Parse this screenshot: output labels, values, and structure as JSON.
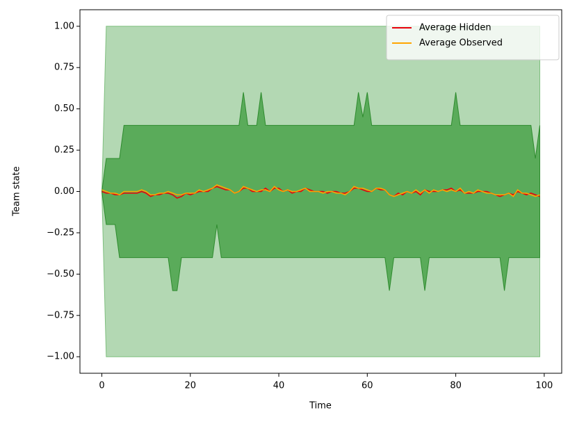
{
  "chart_data": {
    "type": "band_line",
    "xlabel": "Time",
    "ylabel": "Team state",
    "x": [
      0,
      1,
      2,
      3,
      4,
      5,
      6,
      7,
      8,
      9,
      10,
      11,
      12,
      13,
      14,
      15,
      16,
      17,
      18,
      19,
      20,
      21,
      22,
      23,
      24,
      25,
      26,
      27,
      28,
      29,
      30,
      31,
      32,
      33,
      34,
      35,
      36,
      37,
      38,
      39,
      40,
      41,
      42,
      43,
      44,
      45,
      46,
      47,
      48,
      49,
      50,
      51,
      52,
      53,
      54,
      55,
      56,
      57,
      58,
      59,
      60,
      61,
      62,
      63,
      64,
      65,
      66,
      67,
      68,
      69,
      70,
      71,
      72,
      73,
      74,
      75,
      76,
      77,
      78,
      79,
      80,
      81,
      82,
      83,
      84,
      85,
      86,
      87,
      88,
      89,
      90,
      91,
      92,
      93,
      94,
      95,
      96,
      97,
      98,
      99
    ],
    "bands": [
      {
        "color": "#b3d8b3",
        "edge": "#7fbf7f",
        "upper": [
          0,
          1,
          1,
          1,
          1,
          1,
          1,
          1,
          1,
          1,
          1,
          1,
          1,
          1,
          1,
          1,
          1,
          1,
          1,
          1,
          1,
          1,
          1,
          1,
          1,
          1,
          1,
          1,
          1,
          1,
          1,
          1,
          1,
          1,
          1,
          1,
          1,
          1,
          1,
          1,
          1,
          1,
          1,
          1,
          1,
          1,
          1,
          1,
          1,
          1,
          1,
          1,
          1,
          1,
          1,
          1,
          1,
          1,
          1,
          1,
          1,
          1,
          1,
          1,
          1,
          1,
          1,
          1,
          1,
          1,
          1,
          1,
          1,
          1,
          1,
          1,
          1,
          1,
          1,
          1,
          1,
          1,
          1,
          1,
          1,
          1,
          1,
          1,
          1,
          1,
          1,
          1,
          1,
          1,
          1,
          1,
          1,
          1,
          1,
          1
        ],
        "lower": [
          0,
          -1,
          -1,
          -1,
          -1,
          -1,
          -1,
          -1,
          -1,
          -1,
          -1,
          -1,
          -1,
          -1,
          -1,
          -1,
          -1,
          -1,
          -1,
          -1,
          -1,
          -1,
          -1,
          -1,
          -1,
          -1,
          -1,
          -1,
          -1,
          -1,
          -1,
          -1,
          -1,
          -1,
          -1,
          -1,
          -1,
          -1,
          -1,
          -1,
          -1,
          -1,
          -1,
          -1,
          -1,
          -1,
          -1,
          -1,
          -1,
          -1,
          -1,
          -1,
          -1,
          -1,
          -1,
          -1,
          -1,
          -1,
          -1,
          -1,
          -1,
          -1,
          -1,
          -1,
          -1,
          -1,
          -1,
          -1,
          -1,
          -1,
          -1,
          -1,
          -1,
          -1,
          -1,
          -1,
          -1,
          -1,
          -1,
          -1,
          -1,
          -1,
          -1,
          -1,
          -1,
          -1,
          -1,
          -1,
          -1,
          -1,
          -1,
          -1,
          -1,
          -1,
          -1,
          -1,
          -1,
          -1,
          -1,
          -1
        ]
      },
      {
        "color": "#5aab5a",
        "edge": "#2e8b2e",
        "upper": [
          0,
          0.2,
          0.2,
          0.2,
          0.2,
          0.4,
          0.4,
          0.4,
          0.4,
          0.4,
          0.4,
          0.4,
          0.4,
          0.4,
          0.4,
          0.4,
          0.4,
          0.4,
          0.4,
          0.4,
          0.4,
          0.4,
          0.4,
          0.4,
          0.4,
          0.4,
          0.4,
          0.4,
          0.4,
          0.4,
          0.4,
          0.4,
          0.6,
          0.4,
          0.4,
          0.4,
          0.6,
          0.4,
          0.4,
          0.4,
          0.4,
          0.4,
          0.4,
          0.4,
          0.4,
          0.4,
          0.4,
          0.4,
          0.4,
          0.4,
          0.4,
          0.4,
          0.4,
          0.4,
          0.4,
          0.4,
          0.4,
          0.4,
          0.6,
          0.45,
          0.6,
          0.4,
          0.4,
          0.4,
          0.4,
          0.4,
          0.4,
          0.4,
          0.4,
          0.4,
          0.4,
          0.4,
          0.4,
          0.4,
          0.4,
          0.4,
          0.4,
          0.4,
          0.4,
          0.4,
          0.6,
          0.4,
          0.4,
          0.4,
          0.4,
          0.4,
          0.4,
          0.4,
          0.4,
          0.4,
          0.4,
          0.4,
          0.4,
          0.4,
          0.4,
          0.4,
          0.4,
          0.4,
          0.2,
          0.4
        ],
        "lower": [
          0,
          -0.2,
          -0.2,
          -0.2,
          -0.4,
          -0.4,
          -0.4,
          -0.4,
          -0.4,
          -0.4,
          -0.4,
          -0.4,
          -0.4,
          -0.4,
          -0.4,
          -0.4,
          -0.6,
          -0.6,
          -0.4,
          -0.4,
          -0.4,
          -0.4,
          -0.4,
          -0.4,
          -0.4,
          -0.4,
          -0.2,
          -0.4,
          -0.4,
          -0.4,
          -0.4,
          -0.4,
          -0.4,
          -0.4,
          -0.4,
          -0.4,
          -0.4,
          -0.4,
          -0.4,
          -0.4,
          -0.4,
          -0.4,
          -0.4,
          -0.4,
          -0.4,
          -0.4,
          -0.4,
          -0.4,
          -0.4,
          -0.4,
          -0.4,
          -0.4,
          -0.4,
          -0.4,
          -0.4,
          -0.4,
          -0.4,
          -0.4,
          -0.4,
          -0.4,
          -0.4,
          -0.4,
          -0.4,
          -0.4,
          -0.4,
          -0.6,
          -0.4,
          -0.4,
          -0.4,
          -0.4,
          -0.4,
          -0.4,
          -0.4,
          -0.6,
          -0.4,
          -0.4,
          -0.4,
          -0.4,
          -0.4,
          -0.4,
          -0.4,
          -0.4,
          -0.4,
          -0.4,
          -0.4,
          -0.4,
          -0.4,
          -0.4,
          -0.4,
          -0.4,
          -0.4,
          -0.6,
          -0.4,
          -0.4,
          -0.4,
          -0.4,
          -0.4,
          -0.4,
          -0.4,
          -0.4
        ]
      }
    ],
    "series": [
      {
        "name": "Average Hidden",
        "color": "#e8000b",
        "values": [
          0,
          -0.01,
          -0.01,
          -0.02,
          -0.02,
          -0.01,
          -0.01,
          -0.01,
          -0.01,
          0,
          -0.01,
          -0.03,
          -0.02,
          -0.02,
          -0.01,
          -0.01,
          -0.02,
          -0.04,
          -0.03,
          -0.01,
          -0.02,
          -0.01,
          0,
          0,
          0,
          0.02,
          0.03,
          0.02,
          0.01,
          0.01,
          -0.01,
          0,
          0.02,
          0.02,
          0,
          0,
          0,
          0.02,
          0,
          0.02,
          0.02,
          0,
          0.01,
          -0.01,
          0,
          0,
          0.02,
          0.01,
          0,
          0,
          0,
          -0.01,
          0,
          0,
          -0.01,
          -0.01,
          0,
          0.02,
          0.02,
          0.01,
          0,
          0,
          0.02,
          0.01,
          0.01,
          -0.02,
          -0.03,
          -0.01,
          -0.02,
          0,
          -0.01,
          0,
          -0.02,
          0.01,
          0,
          0,
          0,
          0.01,
          0.01,
          0.02,
          0,
          0.01,
          -0.01,
          -0.01,
          -0.01,
          0,
          0,
          0,
          -0.01,
          -0.02,
          -0.03,
          -0.02,
          -0.01,
          -0.02,
          0,
          -0.01,
          -0.02,
          -0.01,
          -0.02,
          -0.03
        ]
      },
      {
        "name": "Average Observed",
        "color": "#ffa500",
        "values": [
          0.01,
          0,
          -0.01,
          -0.01,
          -0.02,
          0,
          0,
          0,
          0,
          0.01,
          0,
          -0.02,
          -0.02,
          -0.01,
          -0.01,
          0,
          -0.01,
          -0.02,
          -0.02,
          -0.01,
          -0.01,
          -0.01,
          0.01,
          0,
          0.01,
          0.02,
          0.04,
          0.03,
          0.02,
          0.01,
          -0.01,
          0,
          0.03,
          0.02,
          0.01,
          0,
          0.01,
          0.01,
          0,
          0.03,
          0.01,
          0,
          0.01,
          0,
          0,
          0.01,
          0.02,
          0,
          0,
          0,
          -0.01,
          0,
          0,
          -0.01,
          -0.01,
          -0.02,
          0,
          0.03,
          0.02,
          0.02,
          0.01,
          0,
          0.02,
          0.02,
          0.01,
          -0.02,
          -0.03,
          -0.02,
          -0.01,
          0,
          -0.01,
          0.01,
          -0.01,
          0.01,
          -0.01,
          0.01,
          0,
          0.01,
          0,
          0.01,
          0,
          0.02,
          -0.01,
          0,
          -0.01,
          0.01,
          0,
          -0.01,
          -0.01,
          -0.02,
          -0.02,
          -0.02,
          -0.01,
          -0.03,
          0.01,
          -0.01,
          -0.01,
          -0.02,
          -0.03,
          -0.02
        ]
      }
    ],
    "xlim": [
      -4.95,
      103.95
    ],
    "xticks": [
      0,
      20,
      40,
      60,
      80,
      100
    ],
    "ylim": [
      -1.1,
      1.1
    ],
    "yticks": [
      {
        "value": -1,
        "label": "−1.00"
      },
      {
        "value": -0.75,
        "label": "−0.75"
      },
      {
        "value": -0.5,
        "label": "−0.50"
      },
      {
        "value": -0.25,
        "label": "−0.25"
      },
      {
        "value": 0,
        "label": "0.00"
      },
      {
        "value": 0.25,
        "label": "0.25"
      },
      {
        "value": 0.5,
        "label": "0.50"
      },
      {
        "value": 0.75,
        "label": "0.75"
      },
      {
        "value": 1,
        "label": "1.00"
      }
    ],
    "legend": "upper right"
  }
}
